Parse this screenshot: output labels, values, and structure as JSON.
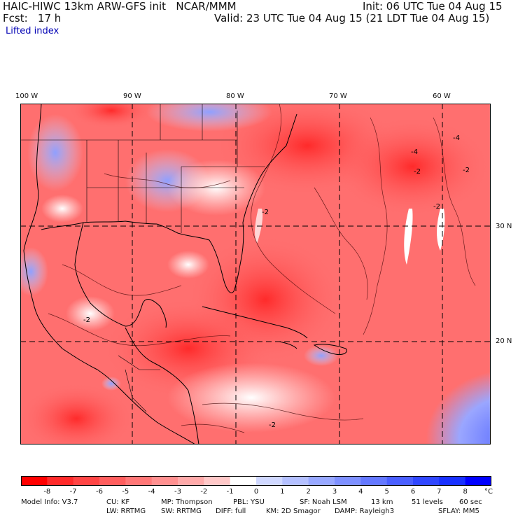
{
  "header": {
    "title_left": "HAIC-HIWC 13km ARW-GFS init   NCAR/MMM",
    "init": "Init: 06 UTC Tue 04 Aug 15",
    "fcst": "Fcst:   17 h",
    "valid": "Valid: 23 UTC Tue 04 Aug 15 (21 LDT Tue 04 Aug 15)",
    "field": "Lifted index"
  },
  "map": {
    "lon_labels": [
      "100 W",
      "90 W",
      "80 W",
      "70 W",
      "60 W"
    ],
    "lat_labels": [
      "30 N",
      "20 N"
    ],
    "contour_labels": [
      "-4",
      "-4",
      "-2",
      "-2",
      "-2",
      "-2",
      "-2",
      "-2"
    ]
  },
  "colorbar": {
    "ticks": [
      "-8",
      "-7",
      "-6",
      "-5",
      "-4",
      "-3",
      "-2",
      "-1",
      "0",
      "1",
      "2",
      "3",
      "4",
      "5",
      "6",
      "7",
      "8"
    ],
    "unit": "°C",
    "colors": [
      "#ff0000",
      "#ff2a2a",
      "#ff4545",
      "#ff5e5e",
      "#ff7777",
      "#ff9090",
      "#ffaaaa",
      "#ffc8c8",
      "#ffffff",
      "#d0d8ff",
      "#b4c0ff",
      "#98a8ff",
      "#7e90ff",
      "#6478ff",
      "#4a5fff",
      "#3047ff",
      "#1830ff",
      "#0000ff"
    ]
  },
  "model_info": {
    "line1": [
      "Model Info: V3.7",
      "CU: KF",
      "MP: Thompson",
      "PBL: YSU",
      "SF: Noah LSM",
      "13 km",
      "51 levels",
      "60 sec"
    ],
    "line2": [
      "LW: RRTMG",
      "SW: RRTMG",
      "DIFF: full",
      "KM: 2D Smagor",
      "DAMP: Rayleigh3",
      "SFLAY: MM5"
    ]
  }
}
